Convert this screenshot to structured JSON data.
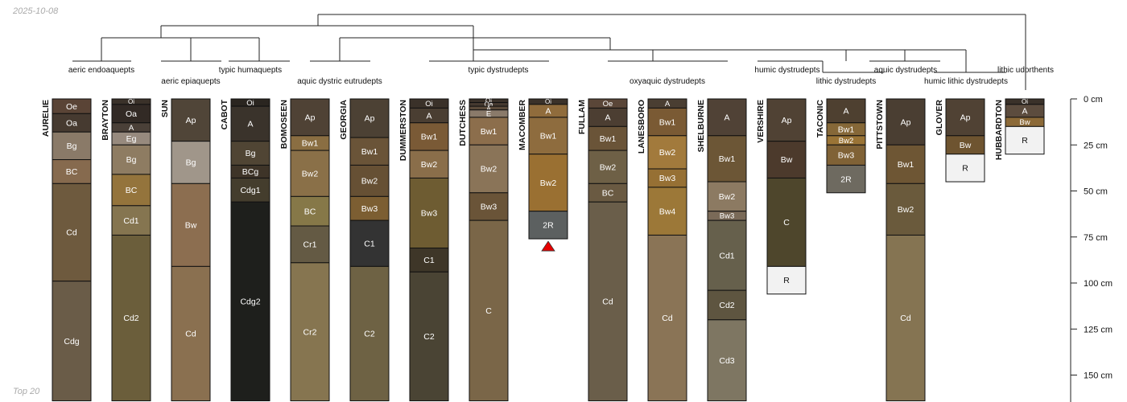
{
  "date_label": "2025-10-08",
  "footer_label": "Top 20",
  "chart_data": {
    "type": "soil-profile-sketch",
    "depth_unit": "cm",
    "depth_ticks": [
      0,
      25,
      50,
      75,
      100,
      125,
      150
    ],
    "depth_range": [
      0,
      164
    ],
    "taxa": [
      "aeric endoaquepts",
      "aeric epiaquepts",
      "typic humaquepts",
      "aquic dystric eutrudepts",
      "typic dystrudepts",
      "oxyaquic dystrudepts",
      "humic dystrudepts",
      "lithic dystrudepts",
      "aquic dystrudepts",
      "humic lithic dystrudepts",
      "lithic udorthents"
    ],
    "profiles": [
      {
        "name": "AURELIE",
        "horizons": [
          {
            "name": "Oe",
            "top": 0,
            "bottom": 8,
            "color": "#5a4436"
          },
          {
            "name": "Oa",
            "top": 8,
            "bottom": 18,
            "color": "#463a30"
          },
          {
            "name": "Bg",
            "top": 18,
            "bottom": 33,
            "color": "#8a7a68"
          },
          {
            "name": "BC",
            "top": 33,
            "bottom": 46,
            "color": "#866a4e"
          },
          {
            "name": "Cd",
            "top": 46,
            "bottom": 99,
            "color": "#6e5a3e"
          },
          {
            "name": "Cdg",
            "top": 99,
            "bottom": 164,
            "color": "#6a5c48"
          }
        ]
      },
      {
        "name": "BRAYTON",
        "horizons": [
          {
            "name": "Oi",
            "top": 0,
            "bottom": 3,
            "color": "#3a3129"
          },
          {
            "name": "Oa",
            "top": 3,
            "bottom": 13,
            "color": "#322a25"
          },
          {
            "name": "A",
            "top": 13,
            "bottom": 18,
            "color": "#4a4038"
          },
          {
            "name": "Eg",
            "top": 18,
            "bottom": 25,
            "color": "#978a7e"
          },
          {
            "name": "Bg",
            "top": 25,
            "bottom": 41,
            "color": "#8e7c62"
          },
          {
            "name": "BC",
            "top": 41,
            "bottom": 58,
            "color": "#94743c"
          },
          {
            "name": "Cd1",
            "top": 58,
            "bottom": 74,
            "color": "#857550"
          },
          {
            "name": "Cd2",
            "top": 74,
            "bottom": 164,
            "color": "#6b5e3b"
          }
        ]
      },
      {
        "name": "SUN",
        "horizons": [
          {
            "name": "Ap",
            "top": 0,
            "bottom": 23,
            "color": "#504538"
          },
          {
            "name": "Bg",
            "top": 23,
            "bottom": 46,
            "color": "#a0968a"
          },
          {
            "name": "Bw",
            "top": 46,
            "bottom": 91,
            "color": "#8c6e50"
          },
          {
            "name": "Cd",
            "top": 91,
            "bottom": 164,
            "color": "#8a7050"
          }
        ]
      },
      {
        "name": "CABOT",
        "horizons": [
          {
            "name": "Oi",
            "top": 0,
            "bottom": 4,
            "color": "#2a2520"
          },
          {
            "name": "A",
            "top": 4,
            "bottom": 23,
            "color": "#3a332b"
          },
          {
            "name": "Bg",
            "top": 23,
            "bottom": 36,
            "color": "#504534"
          },
          {
            "name": "BCg",
            "top": 36,
            "bottom": 43,
            "color": "#3e3428"
          },
          {
            "name": "Cdg1",
            "top": 43,
            "bottom": 56,
            "color": "#443d2d"
          },
          {
            "name": "Cdg2",
            "top": 56,
            "bottom": 164,
            "color": "#1e1f1c"
          }
        ]
      },
      {
        "name": "BOMOSEEN",
        "horizons": [
          {
            "name": "Ap",
            "top": 0,
            "bottom": 20,
            "color": "#4f4235"
          },
          {
            "name": "Bw1",
            "top": 20,
            "bottom": 28,
            "color": "#8a6e42"
          },
          {
            "name": "Bw2",
            "top": 28,
            "bottom": 53,
            "color": "#8a7048"
          },
          {
            "name": "BC",
            "top": 53,
            "bottom": 69,
            "color": "#867848"
          },
          {
            "name": "Cr1",
            "top": 69,
            "bottom": 89,
            "color": "#645a44"
          },
          {
            "name": "Cr2",
            "top": 89,
            "bottom": 164,
            "color": "#867550"
          }
        ]
      },
      {
        "name": "GEORGIA",
        "horizons": [
          {
            "name": "Ap",
            "top": 0,
            "bottom": 21,
            "color": "#4c4134"
          },
          {
            "name": "Bw1",
            "top": 21,
            "bottom": 36,
            "color": "#6a5438"
          },
          {
            "name": "Bw2",
            "top": 36,
            "bottom": 53,
            "color": "#665034"
          },
          {
            "name": "Bw3",
            "top": 53,
            "bottom": 66,
            "color": "#7c5e32"
          },
          {
            "name": "C1",
            "top": 66,
            "bottom": 91,
            "color": "#333333"
          },
          {
            "name": "C2",
            "top": 91,
            "bottom": 164,
            "color": "#6e6244"
          }
        ]
      },
      {
        "name": "DUMMERSTON",
        "horizons": [
          {
            "name": "Oi",
            "top": 0,
            "bottom": 5,
            "color": "#3a3129"
          },
          {
            "name": "A",
            "top": 5,
            "bottom": 13,
            "color": "#4a3e32"
          },
          {
            "name": "Bw1",
            "top": 13,
            "bottom": 28,
            "color": "#7a5a36"
          },
          {
            "name": "Bw2",
            "top": 28,
            "bottom": 43,
            "color": "#8a6e4a"
          },
          {
            "name": "Bw3",
            "top": 43,
            "bottom": 81,
            "color": "#6e5c32"
          },
          {
            "name": "C1",
            "top": 81,
            "bottom": 94,
            "color": "#3e3628"
          },
          {
            "name": "C2",
            "top": 94,
            "bottom": 164,
            "color": "#4a4434"
          }
        ]
      },
      {
        "name": "DUTCHESS",
        "horizons": [
          {
            "name": "Oi",
            "top": 0,
            "bottom": 2,
            "color": "#3a3129"
          },
          {
            "name": "Oa",
            "top": 2,
            "bottom": 4,
            "color": "#463a30"
          },
          {
            "name": "A",
            "top": 4,
            "bottom": 6,
            "color": "#5a4a3a"
          },
          {
            "name": "E",
            "top": 6,
            "bottom": 10,
            "color": "#8a7a6a"
          },
          {
            "name": "Bw1",
            "top": 10,
            "bottom": 25,
            "color": "#8c6e4c"
          },
          {
            "name": "Bw2",
            "top": 25,
            "bottom": 51,
            "color": "#8a7458"
          },
          {
            "name": "Bw3",
            "top": 51,
            "bottom": 66,
            "color": "#6a5438"
          },
          {
            "name": "C",
            "top": 66,
            "bottom": 164,
            "color": "#7a6648"
          }
        ]
      },
      {
        "name": "MACOMBER",
        "horizons": [
          {
            "name": "Oi",
            "top": 0,
            "bottom": 3,
            "color": "#3a3129"
          },
          {
            "name": "A",
            "top": 3,
            "bottom": 10,
            "color": "#906c3c"
          },
          {
            "name": "Bw1",
            "top": 10,
            "bottom": 30,
            "color": "#8e6c3e"
          },
          {
            "name": "Bw2",
            "top": 30,
            "bottom": 61,
            "color": "#9a7032"
          },
          {
            "name": "2R",
            "top": 61,
            "bottom": 76,
            "color": "#5c6060"
          }
        ],
        "marker": "bedrock-triangle"
      },
      {
        "name": "FULLAM",
        "horizons": [
          {
            "name": "Oe",
            "top": 0,
            "bottom": 5,
            "color": "#5a4638"
          },
          {
            "name": "A",
            "top": 5,
            "bottom": 15,
            "color": "#4c3e32"
          },
          {
            "name": "Bw1",
            "top": 15,
            "bottom": 28,
            "color": "#6a5438"
          },
          {
            "name": "Bw2",
            "top": 28,
            "bottom": 46,
            "color": "#6e6046"
          },
          {
            "name": "BC",
            "top": 46,
            "bottom": 56,
            "color": "#6a5a42"
          },
          {
            "name": "Cd",
            "top": 56,
            "bottom": 164,
            "color": "#6a5e4a"
          }
        ]
      },
      {
        "name": "LANESBORO",
        "horizons": [
          {
            "name": "A",
            "top": 0,
            "bottom": 5,
            "color": "#4a3e32"
          },
          {
            "name": "Bw1",
            "top": 5,
            "bottom": 20,
            "color": "#7a5a34"
          },
          {
            "name": "Bw2",
            "top": 20,
            "bottom": 38,
            "color": "#a27a3c"
          },
          {
            "name": "Bw3",
            "top": 38,
            "bottom": 48,
            "color": "#967034"
          },
          {
            "name": "Bw4",
            "top": 48,
            "bottom": 74,
            "color": "#9c7838"
          },
          {
            "name": "Cd",
            "top": 74,
            "bottom": 164,
            "color": "#8a7456"
          }
        ]
      },
      {
        "name": "SHELBURNE",
        "horizons": [
          {
            "name": "A",
            "top": 0,
            "bottom": 20,
            "color": "#504236"
          },
          {
            "name": "Bw1",
            "top": 20,
            "bottom": 45,
            "color": "#6c5636"
          },
          {
            "name": "Bw2",
            "top": 45,
            "bottom": 61,
            "color": "#8c7a62"
          },
          {
            "name": "Bw3",
            "top": 61,
            "bottom": 66,
            "color": "#7a6a58"
          },
          {
            "name": "Cd1",
            "top": 66,
            "bottom": 104,
            "color": "#66604c"
          },
          {
            "name": "Cd2",
            "top": 104,
            "bottom": 120,
            "color": "#5e5540"
          },
          {
            "name": "Cd3",
            "top": 120,
            "bottom": 164,
            "color": "#7e7662"
          }
        ]
      },
      {
        "name": "VERSHIRE",
        "horizons": [
          {
            "name": "Ap",
            "top": 0,
            "bottom": 23,
            "color": "#504234"
          },
          {
            "name": "Bw",
            "top": 23,
            "bottom": 43,
            "color": "#4c3a2c"
          },
          {
            "name": "C",
            "top": 43,
            "bottom": 91,
            "color": "#4e462c"
          },
          {
            "name": "R",
            "top": 91,
            "bottom": 106,
            "color": "#f2f2f2"
          }
        ]
      },
      {
        "name": "TACONIC",
        "horizons": [
          {
            "name": "A",
            "top": 0,
            "bottom": 13,
            "color": "#4e4030"
          },
          {
            "name": "Bw1",
            "top": 13,
            "bottom": 20,
            "color": "#866838"
          },
          {
            "name": "Bw2",
            "top": 20,
            "bottom": 25,
            "color": "#9a7436"
          },
          {
            "name": "Bw3",
            "top": 25,
            "bottom": 36,
            "color": "#806236"
          },
          {
            "name": "2R",
            "top": 36,
            "bottom": 51,
            "color": "#6e6a60"
          }
        ]
      },
      {
        "name": "PITTSTOWN",
        "horizons": [
          {
            "name": "Ap",
            "top": 0,
            "bottom": 25,
            "color": "#4a3e32"
          },
          {
            "name": "Bw1",
            "top": 25,
            "bottom": 46,
            "color": "#6e5634"
          },
          {
            "name": "Bw2",
            "top": 46,
            "bottom": 74,
            "color": "#6a5a3c"
          },
          {
            "name": "Cd",
            "top": 74,
            "bottom": 164,
            "color": "#857452"
          }
        ]
      },
      {
        "name": "GLOVER",
        "horizons": [
          {
            "name": "Ap",
            "top": 0,
            "bottom": 20,
            "color": "#504234"
          },
          {
            "name": "Bw",
            "top": 20,
            "bottom": 30,
            "color": "#6e5430"
          },
          {
            "name": "R",
            "top": 30,
            "bottom": 45,
            "color": "#f2f2f2"
          }
        ]
      },
      {
        "name": "HUBBARDTON",
        "horizons": [
          {
            "name": "Oi",
            "top": 0,
            "bottom": 3,
            "color": "#3a3129"
          },
          {
            "name": "A",
            "top": 3,
            "bottom": 10,
            "color": "#5c4c3e"
          },
          {
            "name": "Bw",
            "top": 10,
            "bottom": 15,
            "color": "#8c6a38"
          },
          {
            "name": "R",
            "top": 15,
            "bottom": 30,
            "color": "#f2f2f2"
          }
        ]
      }
    ]
  }
}
